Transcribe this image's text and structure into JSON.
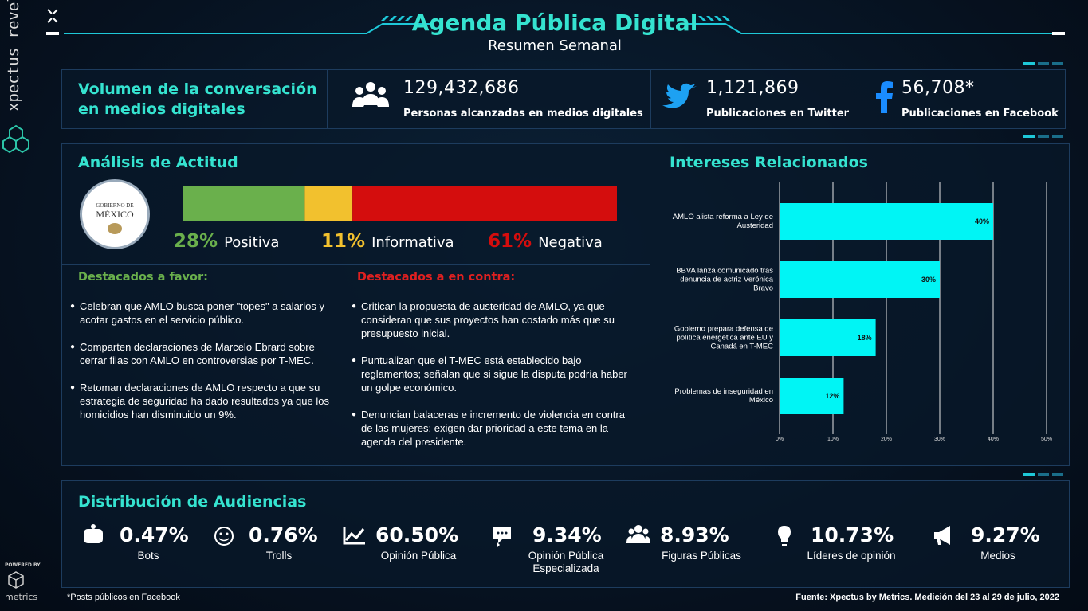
{
  "sidebar": {
    "brand": "xpectus revelio",
    "powered": "POWERED BY",
    "metrics": "metrics"
  },
  "header": {
    "title": "Agenda Pública Digital",
    "subtitle": "Resumen Semanal"
  },
  "volume": {
    "title": "Volumen de la conversación en medios digitales",
    "stats": [
      {
        "value": "129,432,686",
        "label": "Personas alcanzadas en medios digitales"
      },
      {
        "value": "1,121,869",
        "label": "Publicaciones en Twitter"
      },
      {
        "value": "56,708*",
        "label": "Publicaciones en Facebook"
      }
    ]
  },
  "attitude": {
    "title": "Análisis de Actitud",
    "logo": [
      "GOBIERNO DE",
      "MÉXICO"
    ],
    "segments": [
      {
        "name": "Positiva",
        "value": 28,
        "value_label": "28%",
        "color": "#6ab04c"
      },
      {
        "name": "Informativa",
        "value": 11,
        "value_label": "11%",
        "color": "#f2c12e"
      },
      {
        "name": "Negativa",
        "value": 61,
        "value_label": "61%",
        "color": "#d40d0d"
      }
    ]
  },
  "highlights": {
    "favor": {
      "title": "Destacados a favor:",
      "items": [
        "Celebran que AMLO busca poner \"topes\" a salarios y acotar gastos en el servicio público.",
        "Comparten declaraciones de Marcelo Ebrard sobre cerrar filas con AMLO en controversias por T-MEC.",
        "Retoman declaraciones de AMLO respecto a que su estrategia de seguridad ha dado resultados ya que los homicidios han disminuido un 9%."
      ]
    },
    "contra": {
      "title": "Destacados a en contra:",
      "items": [
        "Critican la propuesta de austeridad de AMLO, ya que consideran que sus proyectos han costado más que su presupuesto inicial.",
        "Puntualizan que el T-MEC está establecido bajo reglamentos; señalan que si sigue la disputa podría haber un golpe económico.",
        "Denuncian balaceras e incremento de violencia en contra de las mujeres; exigen dar prioridad a este tema en la agenda del presidente."
      ]
    }
  },
  "chart_data": {
    "type": "bar",
    "orientation": "horizontal",
    "title": "Intereses Relacionados",
    "categories": [
      "AMLO alista reforma a Ley de Austeridad",
      "BBVA lanza comunicado tras denuncia de actriz Verónica Bravo",
      "Gobierno prepara defensa de política energética ante EU y Canadá en T-MEC",
      "Problemas de inseguridad en México"
    ],
    "values": [
      40,
      30,
      18,
      12
    ],
    "value_labels": [
      "40%",
      "30%",
      "18%",
      "12%"
    ],
    "color": "#00f5f5",
    "xlim": [
      0,
      50
    ],
    "xticks": [
      {
        "value": 0,
        "label": "0%"
      },
      {
        "value": 10,
        "label": "10%"
      },
      {
        "value": 20,
        "label": "20%"
      },
      {
        "value": 30,
        "label": "30%"
      },
      {
        "value": 40,
        "label": "40%"
      },
      {
        "value": 50,
        "label": "50%"
      }
    ],
    "grid": true
  },
  "audience": {
    "title": "Distribución de Audiencias",
    "items": [
      {
        "value": "0.47%",
        "label": "Bots"
      },
      {
        "value": "0.76%",
        "label": "Trolls"
      },
      {
        "value": "60.50%",
        "label": "Opinión Pública"
      },
      {
        "value": "9.34%",
        "label": "Opinión Pública Especializada"
      },
      {
        "value": "8.93%",
        "label": "Figuras Públicas"
      },
      {
        "value": "10.73%",
        "label": "Líderes de opinión"
      },
      {
        "value": "9.27%",
        "label": "Medios"
      }
    ]
  },
  "footer": {
    "note": "*Posts públicos en Facebook",
    "source": "Fuente: Xpectus by Metrics. Medición del 23 al 29 de julio, 2022"
  }
}
